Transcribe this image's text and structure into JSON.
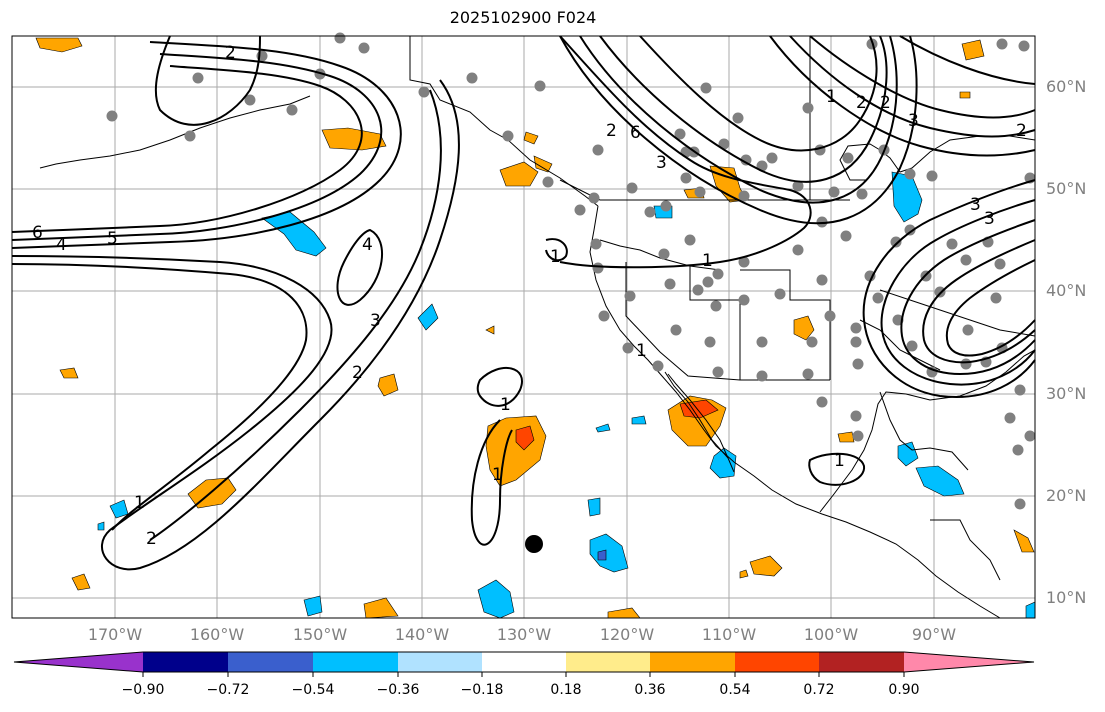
{
  "title": "2025102900 F024",
  "map": {
    "projection": "PlateCarree",
    "lon_range": [
      -180,
      -80
    ],
    "lat_range": [
      8,
      65
    ],
    "grid": true,
    "lon_labels": [
      "170°W",
      "160°W",
      "150°W",
      "140°W",
      "130°W",
      "120°W",
      "110°W",
      "100°W",
      "90°W"
    ],
    "lat_labels": [
      "60°N",
      "50°N",
      "40°N",
      "30°N",
      "20°N",
      "10°N"
    ],
    "contour_labels": [
      "6",
      "5",
      "4",
      "2",
      "3",
      "2",
      "1",
      "4",
      "3",
      "2",
      "1",
      "1",
      "1",
      "2",
      "3",
      "6",
      "2",
      "1",
      "2",
      "3",
      "3",
      "2",
      "1",
      "1",
      "1"
    ],
    "marker": "black-dot"
  },
  "colorbar": {
    "ticks": [
      "−0.90",
      "−0.72",
      "−0.54",
      "−0.36",
      "−0.18",
      "0.18",
      "0.36",
      "0.54",
      "0.72",
      "0.90"
    ],
    "colors": [
      "#9932CC",
      "#00008B",
      "#3A5FCD",
      "#00BFFF",
      "#B0E2FF",
      "#FFFFFF",
      "#FFEC8B",
      "#FFA500",
      "#FF4500",
      "#B22222",
      "#FF88AA"
    ]
  }
}
